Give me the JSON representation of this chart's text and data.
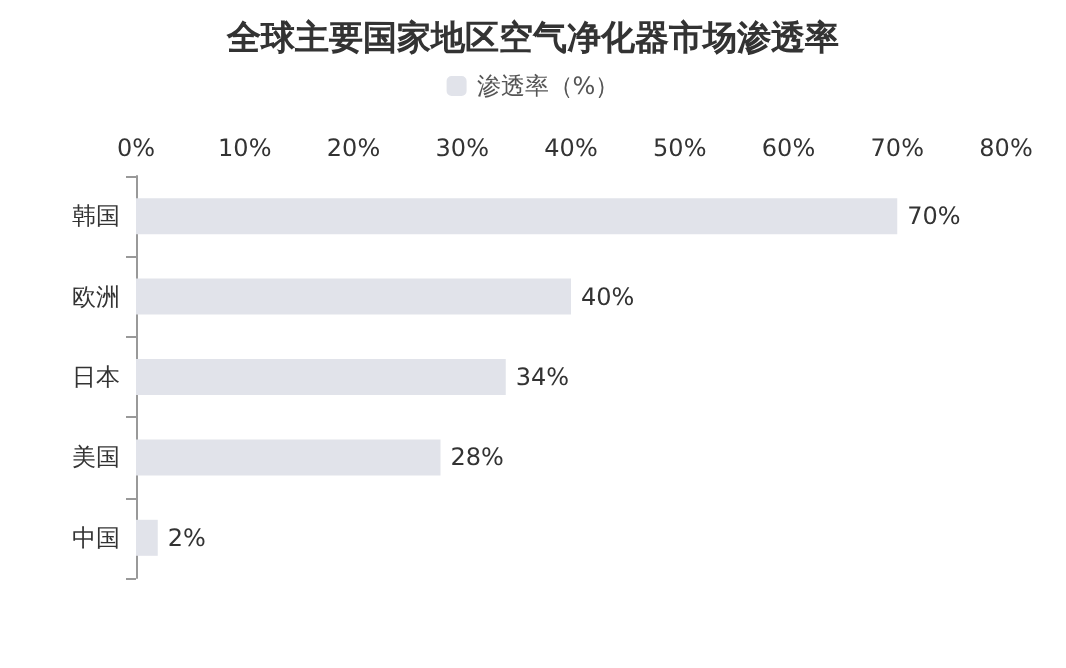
{
  "chart_data": {
    "type": "bar",
    "orientation": "horizontal",
    "title": "全球主要国家地区空气净化器市场渗透率",
    "categories": [
      "韩国",
      "欧洲",
      "日本",
      "美国",
      "中国"
    ],
    "series": [
      {
        "name": "渗透率（%）",
        "color": "#e1e3ea",
        "values": [
          70,
          40,
          34,
          28,
          2
        ],
        "value_labels": [
          "70%",
          "40%",
          "34%",
          "28%",
          "2%"
        ]
      }
    ],
    "xlim": [
      0,
      80
    ],
    "xticks": [
      {
        "value": 0,
        "label": "0%"
      },
      {
        "value": 10,
        "label": "10%"
      },
      {
        "value": 20,
        "label": "20%"
      },
      {
        "value": 30,
        "label": "30%"
      },
      {
        "value": 40,
        "label": "40%"
      },
      {
        "value": 50,
        "label": "50%"
      },
      {
        "value": 60,
        "label": "60%"
      },
      {
        "value": 70,
        "label": "70%"
      },
      {
        "value": 80,
        "label": "80%"
      }
    ],
    "grid": false,
    "legend": "top"
  }
}
